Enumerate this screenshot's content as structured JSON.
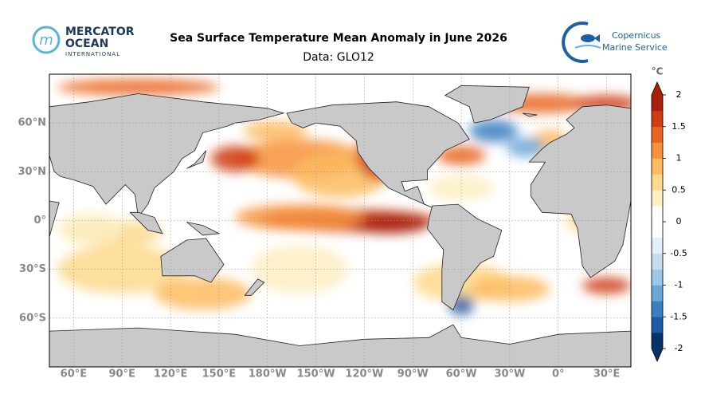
{
  "header": {
    "title": "Sea Surface Temperature Mean Anomaly in June 2026",
    "subtitle": "Data: GLO12",
    "left_logo": {
      "line1": "MERCATOR",
      "line2": "OCEAN",
      "line3": "INTERNATIONAL"
    },
    "right_logo": {
      "line1": "Copernicus",
      "line2": "Marine Service"
    }
  },
  "map": {
    "xlim": [
      45,
      405
    ],
    "ylim": [
      -90,
      90
    ],
    "xticks": [
      {
        "value": 60,
        "label": "60°E"
      },
      {
        "value": 90,
        "label": "90°E"
      },
      {
        "value": 120,
        "label": "120°E"
      },
      {
        "value": 150,
        "label": "150°E"
      },
      {
        "value": 180,
        "label": "180°W"
      },
      {
        "value": 210,
        "label": "150°W"
      },
      {
        "value": 240,
        "label": "120°W"
      },
      {
        "value": 270,
        "label": "90°W"
      },
      {
        "value": 300,
        "label": "60°W"
      },
      {
        "value": 330,
        "label": "30°W"
      },
      {
        "value": 360,
        "label": "0°"
      },
      {
        "value": 390,
        "label": "30°E"
      }
    ],
    "yticks": [
      {
        "value": 60,
        "label": "60°N"
      },
      {
        "value": 30,
        "label": "30°N"
      },
      {
        "value": 0,
        "label": "0°"
      },
      {
        "value": -30,
        "label": "30°S"
      },
      {
        "value": -60,
        "label": "60°S"
      }
    ],
    "grid": true
  },
  "colorbar": {
    "unit": "°C",
    "clim": [
      -2,
      2
    ],
    "ticks": [
      -2,
      -1.5,
      -1,
      -0.5,
      0,
      0.5,
      1,
      1.5,
      2
    ],
    "colors": [
      "#08306b",
      "#1c5aa6",
      "#3a7fc1",
      "#6aa7d6",
      "#9cc7e6",
      "#c3ddef",
      "#e2eef8",
      "#ffffff",
      "#ffffff",
      "#fdefc2",
      "#fdd98c",
      "#fdbb5f",
      "#f7923a",
      "#e9641f",
      "#cf3b12",
      "#a81f0c"
    ]
  }
}
